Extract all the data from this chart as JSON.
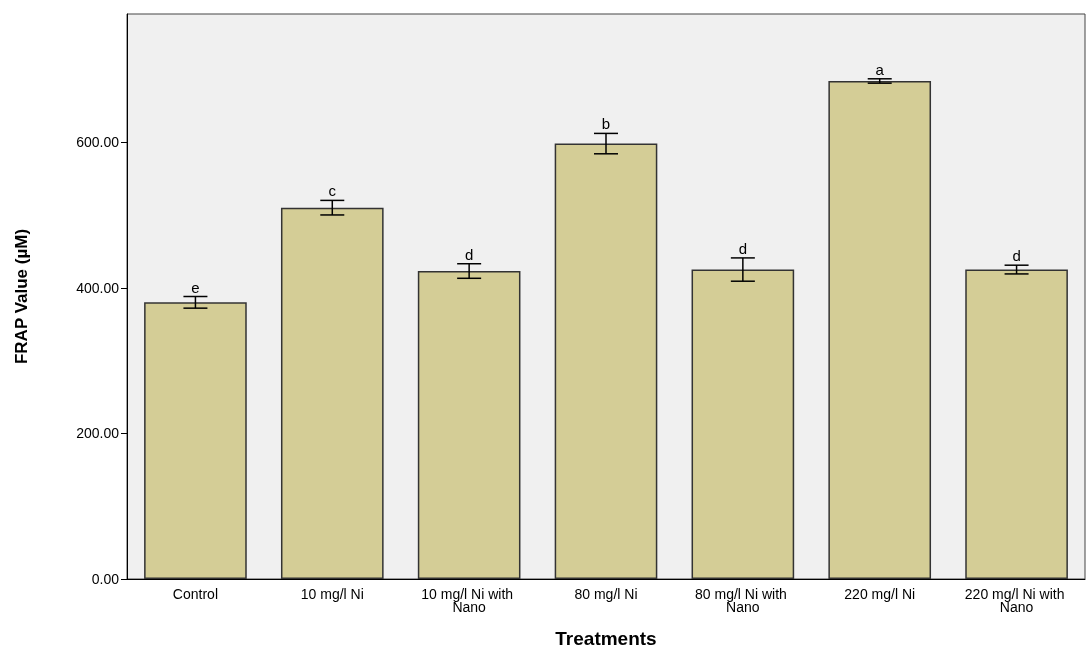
{
  "chart_data": {
    "type": "bar",
    "xlabel": "Treatments",
    "ylabel": "FRAP Value (µM)",
    "categories": [
      "Control",
      "10 mg/l Ni",
      "10 mg/l Ni with Nano",
      "80 mg/l Ni",
      "80 mg/l Ni with Nano",
      "220 mg/l Ni",
      "220 mg/l Ni with Nano"
    ],
    "values": [
      380,
      510,
      423,
      598,
      425,
      684,
      425
    ],
    "errors": [
      8,
      10,
      10,
      14,
      16,
      3,
      6
    ],
    "color": "#d4cd96",
    "ylim": [
      0,
      776
    ],
    "yticks": [
      {
        "value": 0,
        "label": "0.00"
      },
      {
        "value": 200,
        "label": "200.00"
      },
      {
        "value": 400,
        "label": "400.00"
      },
      {
        "value": 600,
        "label": "600.00"
      }
    ],
    "grid": false,
    "annotations": [
      {
        "text": "e",
        "x": "Control",
        "y": 388
      },
      {
        "text": "c",
        "x": "10 mg/l Ni",
        "y": 520
      },
      {
        "text": "d",
        "x": "10 mg/l Ni with Nano",
        "y": 433
      },
      {
        "text": "b",
        "x": "80 mg/l Ni",
        "y": 612
      },
      {
        "text": "d",
        "x": "80 mg/l Ni with Nano",
        "y": 441
      },
      {
        "text": "a",
        "x": "220 mg/l Ni",
        "y": 687
      },
      {
        "text": "d",
        "x": "220 mg/l Ni with Nano",
        "y": 431
      }
    ]
  }
}
